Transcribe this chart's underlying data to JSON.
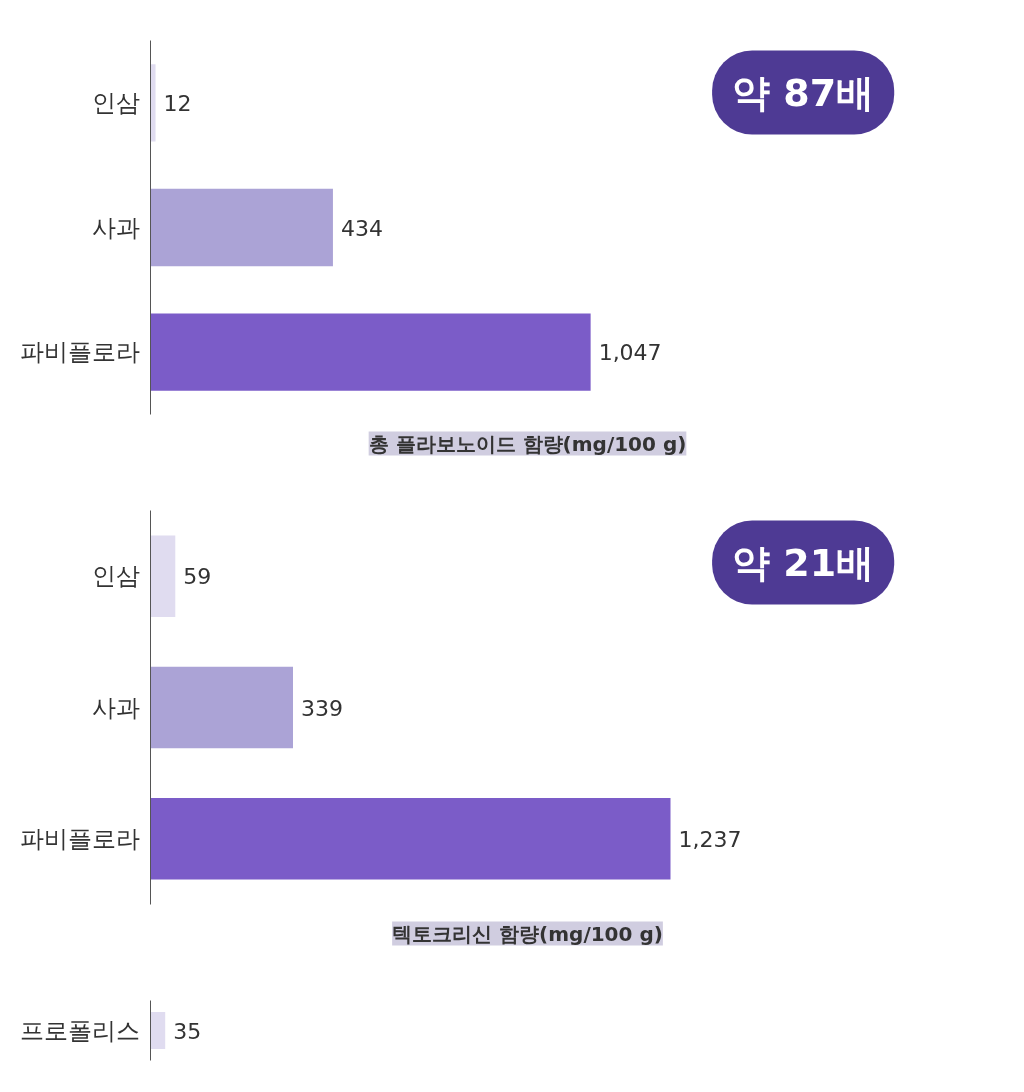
{
  "chart_data": [
    {
      "type": "bar",
      "orientation": "horizontal",
      "categories": [
        "인삼",
        "사과",
        "파비플로라"
      ],
      "values": [
        12,
        434,
        1047
      ],
      "value_labels": [
        "12",
        "434",
        "1,047"
      ],
      "colors": [
        "#e0dcf0",
        "#aba3d6",
        "#7b5cc8"
      ],
      "xlabel": "총 플라보노이드 함량(mg/100 g)",
      "annotations": [
        "약 87배"
      ]
    },
    {
      "type": "bar",
      "orientation": "horizontal",
      "categories": [
        "인삼",
        "사과",
        "파비플로라"
      ],
      "values": [
        59,
        339,
        1237
      ],
      "value_labels": [
        "59",
        "339",
        "1,237"
      ],
      "colors": [
        "#e0dcf0",
        "#aba3d6",
        "#7b5cc8"
      ],
      "xlabel": "텍토크리신 함량(mg/100 g)",
      "annotations": [
        "약 21배"
      ]
    },
    {
      "type": "bar",
      "orientation": "horizontal",
      "categories": [
        "프로폴리스"
      ],
      "values": [
        35
      ],
      "colors": [
        "#e0dcf0"
      ],
      "value_labels": [
        "35"
      ]
    }
  ]
}
